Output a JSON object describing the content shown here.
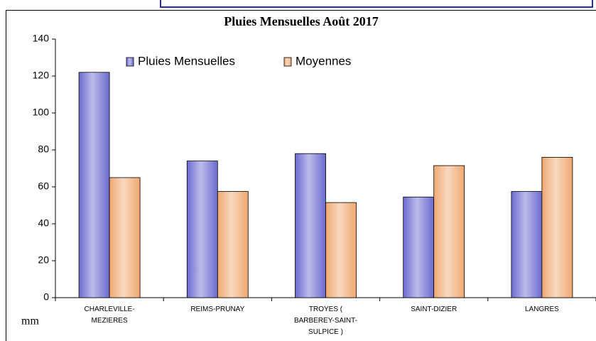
{
  "chart_data": {
    "type": "bar",
    "title": "Pluies Mensuelles Août 2017",
    "y_label": "mm",
    "categories": [
      "CHARLEVILLE-\nMEZIERES",
      "REIMS-PRUNAY",
      "TROYES (\nBARBEREY-SAINT-\nSULPICE )",
      "SAINT-DIZIER",
      "LANGRES"
    ],
    "series": [
      {
        "name": "Pluies Mensuelles",
        "color": "#6a6ad0",
        "values": [
          122,
          74,
          78,
          54.5,
          57.5
        ]
      },
      {
        "name": "Moyennes",
        "color": "#f0a870",
        "values": [
          65,
          57.5,
          51.5,
          71.5,
          76
        ]
      }
    ],
    "ylim": [
      0,
      140
    ],
    "yticks": [
      0,
      20,
      40,
      60,
      80,
      100,
      120,
      140
    ],
    "grid": false,
    "legend": "top"
  }
}
